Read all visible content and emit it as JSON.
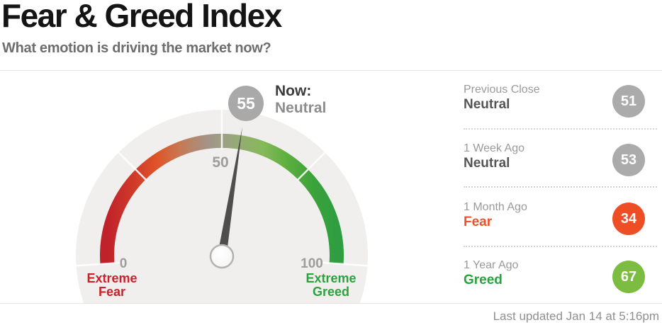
{
  "header": {
    "title": "Fear & Greed Index",
    "subtitle": "What emotion is driving the market now?"
  },
  "gauge": {
    "now_label": "Now:",
    "now_status": "Neutral",
    "now_value": "55",
    "tick_min": "0",
    "tick_mid": "50",
    "tick_max": "100",
    "min_caption_line1": "Extreme",
    "min_caption_line2": "Fear",
    "max_caption_line1": "Extreme",
    "max_caption_line2": "Greed"
  },
  "history": {
    "rows": [
      {
        "period": "Previous Close",
        "status": "Neutral",
        "value": "51"
      },
      {
        "period": "1 Week Ago",
        "status": "Neutral",
        "value": "53"
      },
      {
        "period": "1 Month Ago",
        "status": "Fear",
        "value": "34"
      },
      {
        "period": "1 Year Ago",
        "status": "Greed",
        "value": "67"
      }
    ]
  },
  "footer": {
    "last_updated": "Last updated Jan 14 at 5:16pm"
  },
  "colors": {
    "gauge_background": "#f0efee",
    "needle": "#4e4e4e",
    "now_value_badge": "#a9a9a9",
    "badge_neutral": "#ababab",
    "badge_fear": "#ee4e23",
    "badge_greed": "#7cbd41",
    "extreme_fear_label": "#c8232c",
    "extreme_greed_label": "#2aa33c",
    "band_gradient": [
      "#c0222b",
      "#cd3629",
      "#df5529",
      "#c57a55",
      "#a39388",
      "#9d9f85",
      "#94ac72",
      "#85b95a",
      "#5faf3f",
      "#3aa23a",
      "#2f9e41"
    ]
  },
  "chart_data": {
    "type": "gauge",
    "title": "Fear & Greed Index",
    "min": 0,
    "max": 100,
    "ticks": [
      0,
      50,
      100
    ],
    "segment_dividers": [
      0,
      25,
      50,
      75,
      100
    ],
    "current_value": 55,
    "current_label": "Neutral",
    "min_end_label": "Extreme Fear",
    "max_end_label": "Extreme Greed",
    "history": [
      {
        "period": "Previous Close",
        "label": "Neutral",
        "value": 51
      },
      {
        "period": "1 Week Ago",
        "label": "Neutral",
        "value": 53
      },
      {
        "period": "1 Month Ago",
        "label": "Fear",
        "value": 34
      },
      {
        "period": "1 Year Ago",
        "label": "Greed",
        "value": 67
      }
    ],
    "last_updated": "Last updated Jan 14 at 5:16pm"
  }
}
